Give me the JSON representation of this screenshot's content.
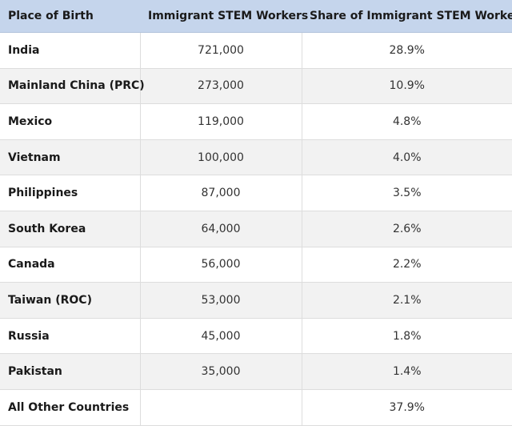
{
  "table": {
    "headers": [
      "Place of Birth",
      "Immigrant STEM Workers",
      "Share of Immigrant STEM Workers"
    ],
    "rows": [
      {
        "country": "India",
        "workers": "721,000",
        "share": "28.9%"
      },
      {
        "country": "Mainland China (PRC)",
        "workers": "273,000",
        "share": "10.9%"
      },
      {
        "country": "Mexico",
        "workers": "119,000",
        "share": "4.8%"
      },
      {
        "country": "Vietnam",
        "workers": "100,000",
        "share": "4.0%"
      },
      {
        "country": "Philippines",
        "workers": "87,000",
        "share": "3.5%"
      },
      {
        "country": "South Korea",
        "workers": "64,000",
        "share": "2.6%"
      },
      {
        "country": "Canada",
        "workers": "56,000",
        "share": "2.2%"
      },
      {
        "country": "Taiwan (ROC)",
        "workers": "53,000",
        "share": "2.1%"
      },
      {
        "country": "Russia",
        "workers": "45,000",
        "share": "1.8%"
      },
      {
        "country": "Pakistan",
        "workers": "35,000",
        "share": "1.4%"
      },
      {
        "country": "All Other Countries",
        "workers": "",
        "share": "37.9%"
      }
    ]
  },
  "colors": {
    "header_bg": "#c5d5ec",
    "stripe_bg": "#f2f2f2",
    "border": "#dddddd"
  }
}
